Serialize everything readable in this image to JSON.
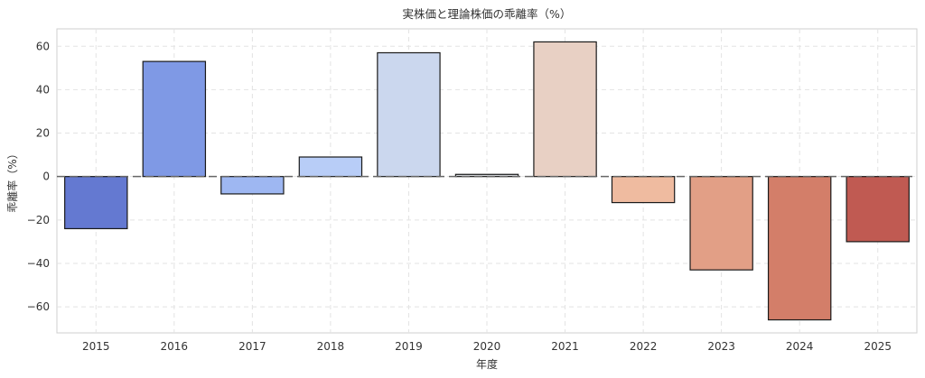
{
  "chart_data": {
    "type": "bar",
    "title": "実株価と理論株価の乖離率（%）",
    "xlabel": "年度",
    "ylabel": "乖離率（%）",
    "categories": [
      "2015",
      "2016",
      "2017",
      "2018",
      "2019",
      "2020",
      "2021",
      "2022",
      "2023",
      "2024",
      "2025"
    ],
    "values": [
      -24,
      53,
      -8,
      9,
      57,
      1,
      62,
      -12,
      -43,
      -66,
      -30
    ],
    "colors": [
      "#6479d1",
      "#7f99e5",
      "#9eb7f2",
      "#b8cdf7",
      "#cbd7ee",
      "#d6d8dc",
      "#e8d0c4",
      "#efbba0",
      "#e29f86",
      "#d37e69",
      "#c05a52"
    ],
    "ylim": [
      -72,
      68
    ],
    "yticks": [
      -60,
      -40,
      -20,
      0,
      20,
      40,
      60
    ],
    "ytick_labels": [
      "−60",
      "−40",
      "−20",
      "0",
      "20",
      "40",
      "60"
    ],
    "reference_line": 0,
    "grid": true
  }
}
